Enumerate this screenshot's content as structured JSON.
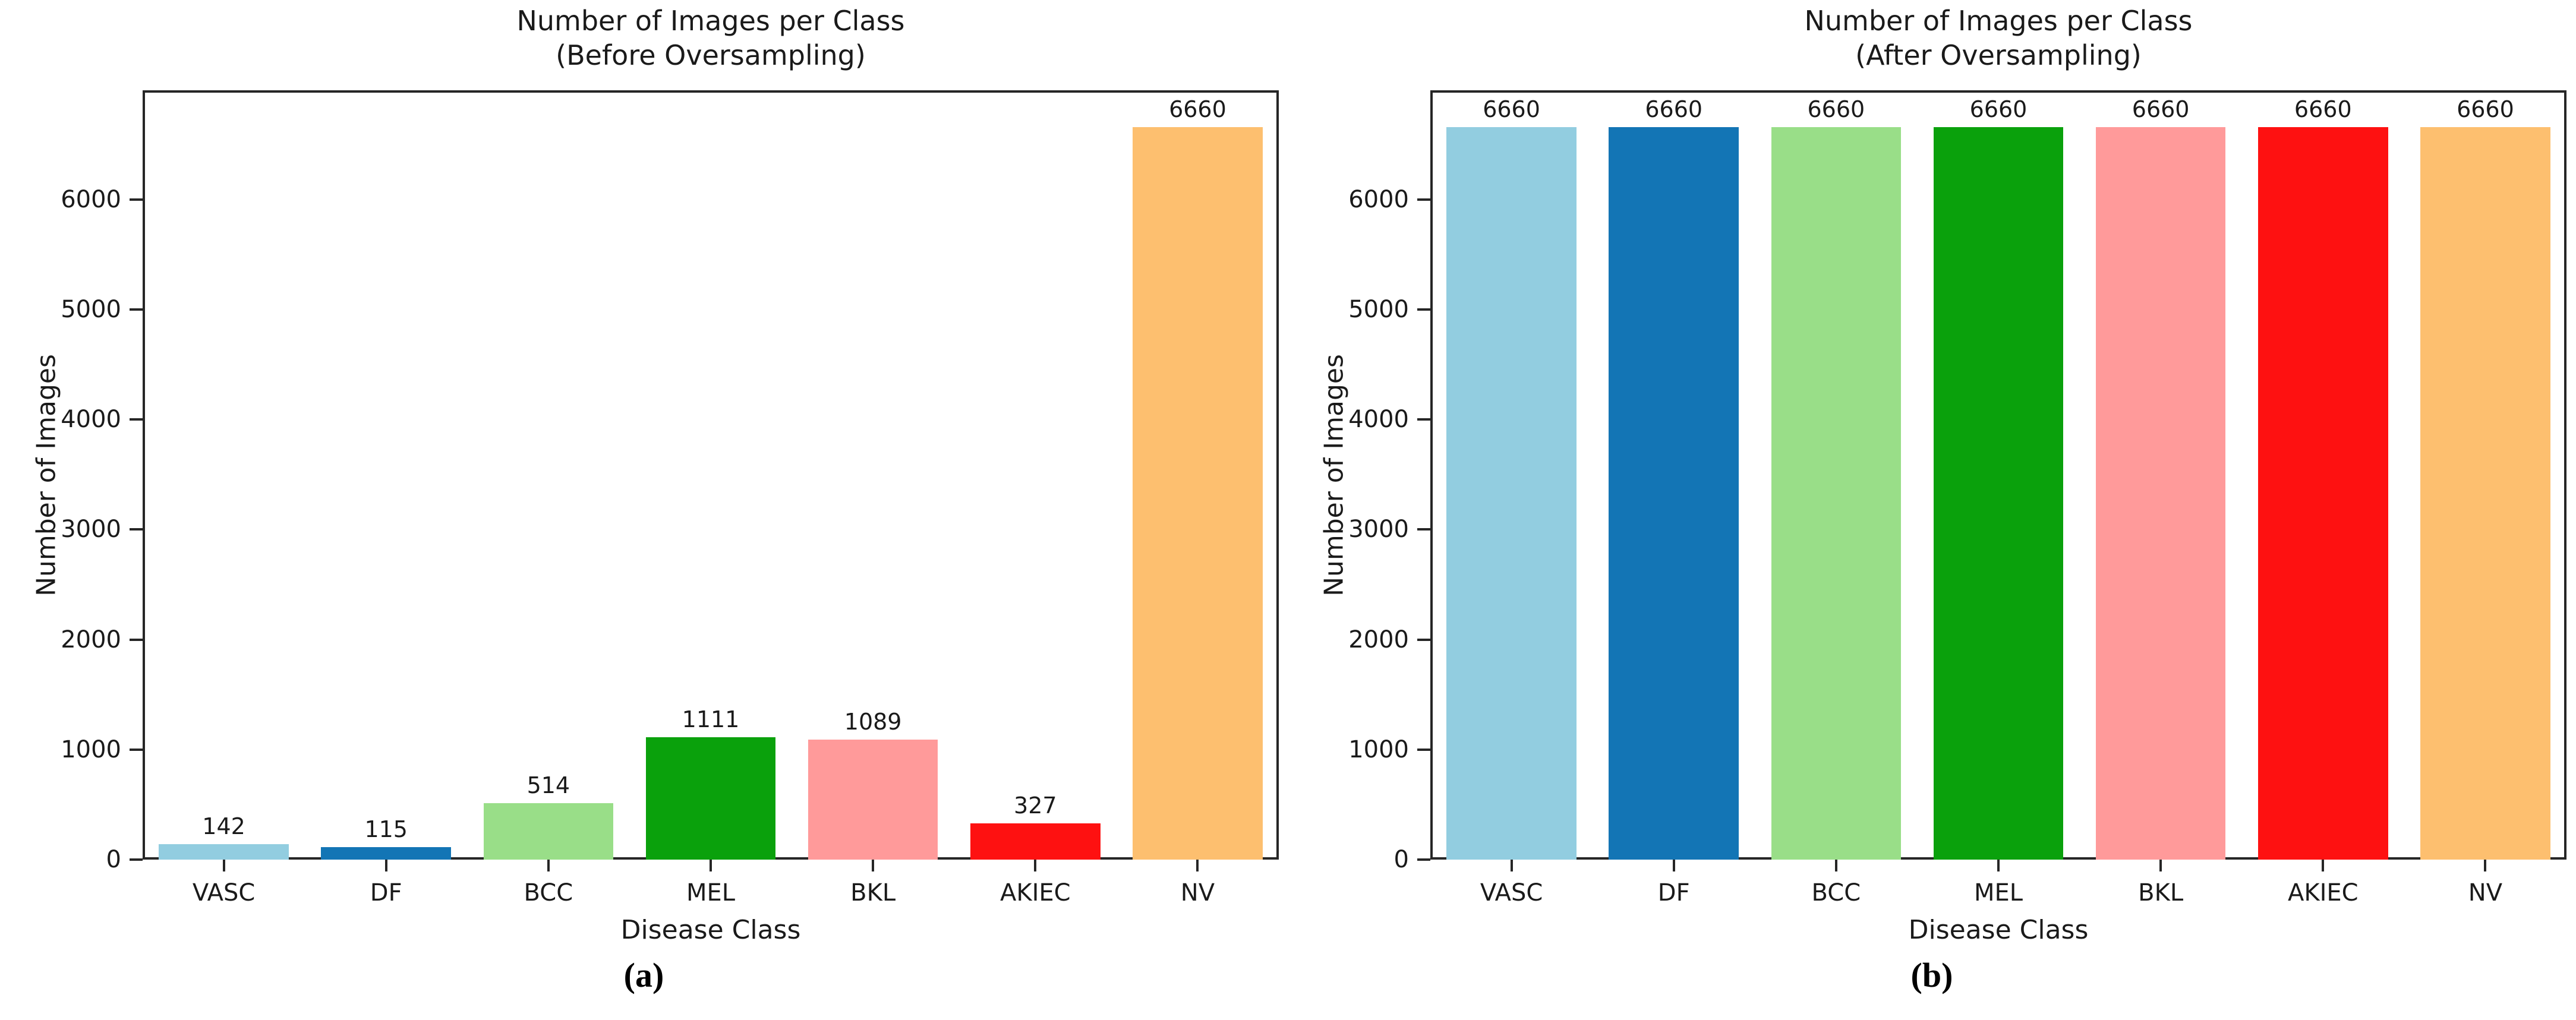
{
  "figure": {
    "captions": [
      "(a)",
      "(b)"
    ]
  },
  "chart_data": [
    {
      "type": "bar",
      "title_line1": "Number of Images per Class",
      "title_line2": "(Before Oversampling)",
      "xlabel": "Disease Class",
      "ylabel": "Number of Images",
      "categories": [
        "VASC",
        "DF",
        "BCC",
        "MEL",
        "BKL",
        "AKIEC",
        "NV"
      ],
      "values": [
        142,
        115,
        514,
        1111,
        1089,
        327,
        6660
      ],
      "bar_labels": [
        "142",
        "115",
        "514",
        "1111",
        "1089",
        "327",
        "6660"
      ],
      "colors": [
        "#92CDE0",
        "#1375B5",
        "#99DE88",
        "#0AA10C",
        "#FF9A9A",
        "#FE1111",
        "#FDBF6F"
      ],
      "yticks": [
        0,
        1000,
        2000,
        3000,
        4000,
        5000,
        6000
      ],
      "ylim": [
        0,
        6993
      ],
      "grid": false,
      "legend_position": "none"
    },
    {
      "type": "bar",
      "title_line1": "Number of Images per Class",
      "title_line2": "(After Oversampling)",
      "xlabel": "Disease Class",
      "ylabel": "Number of Images",
      "categories": [
        "VASC",
        "DF",
        "BCC",
        "MEL",
        "BKL",
        "AKIEC",
        "NV"
      ],
      "values": [
        6660,
        6660,
        6660,
        6660,
        6660,
        6660,
        6660
      ],
      "bar_labels": [
        "6660",
        "6660",
        "6660",
        "6660",
        "6660",
        "6660",
        "6660"
      ],
      "colors": [
        "#92CDE0",
        "#1375B5",
        "#99DE88",
        "#0AA10C",
        "#FF9A9A",
        "#FE1111",
        "#FDBF6F"
      ],
      "yticks": [
        0,
        1000,
        2000,
        3000,
        4000,
        5000,
        6000
      ],
      "ylim": [
        0,
        6993
      ],
      "grid": false,
      "legend_position": "none"
    }
  ]
}
